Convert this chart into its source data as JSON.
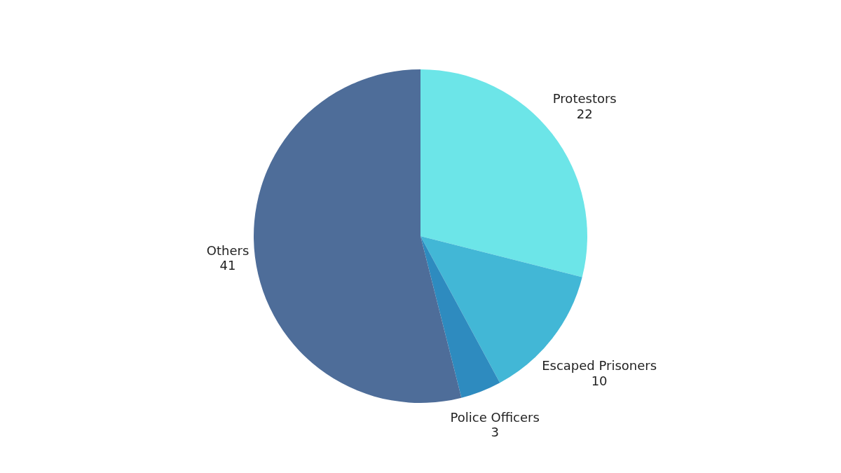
{
  "chart_data": {
    "type": "pie",
    "categories": [
      "Protestors",
      "Escaped Prisoners",
      "Police Officers",
      "Others"
    ],
    "values": [
      22,
      10,
      3,
      41
    ],
    "colors": [
      "#6ce5e8",
      "#42b7d6",
      "#2e8bbf",
      "#4e6d99"
    ],
    "data_labels": true
  }
}
